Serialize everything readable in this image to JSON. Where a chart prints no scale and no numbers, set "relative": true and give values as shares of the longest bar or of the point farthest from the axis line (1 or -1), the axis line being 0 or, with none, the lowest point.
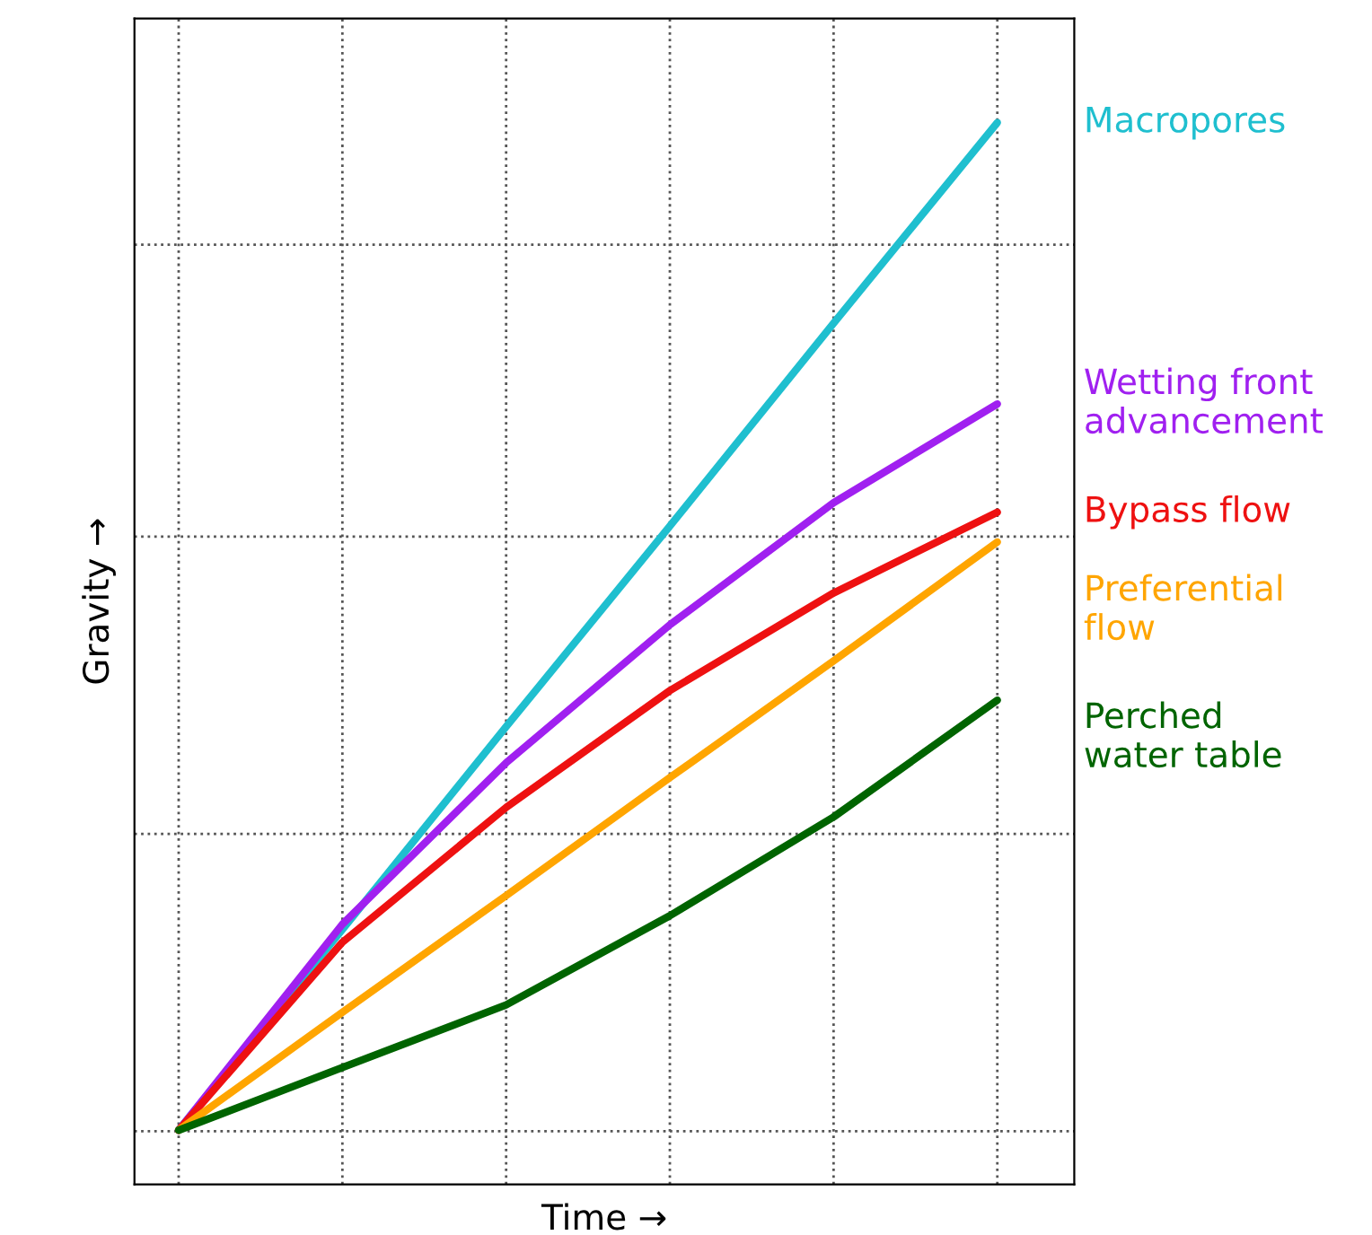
{
  "chart_data": {
    "type": "line",
    "relative": true,
    "xlabel": "Time →",
    "ylabel": "Gravity →",
    "grid": true,
    "legend": false,
    "line_style": "solid",
    "marker": "none",
    "categories": [
      null,
      null,
      null,
      null,
      null,
      null
    ],
    "series": [
      {
        "name": "Macropores",
        "color": "#1fbfcf",
        "values": [
          0.051,
          0.24,
          0.431,
          0.62,
          0.811,
          1.0
        ]
      },
      {
        "name": "Wetting front\nadvancement",
        "color": "#a020f0",
        "values": [
          0.051,
          0.245,
          0.397,
          0.527,
          0.642,
          0.735
        ]
      },
      {
        "name": "Bypass flow",
        "color": "#ee1111",
        "values": [
          0.051,
          0.228,
          0.355,
          0.465,
          0.557,
          0.633
        ]
      },
      {
        "name": "Preferential\nflow",
        "color": "#ffa500",
        "values": [
          0.051,
          0.162,
          0.272,
          0.383,
          0.493,
          0.605
        ]
      },
      {
        "name": "Perched\nwater table",
        "color": "#006400",
        "values": [
          0.051,
          0.11,
          0.169,
          0.253,
          0.346,
          0.456
        ]
      }
    ]
  }
}
